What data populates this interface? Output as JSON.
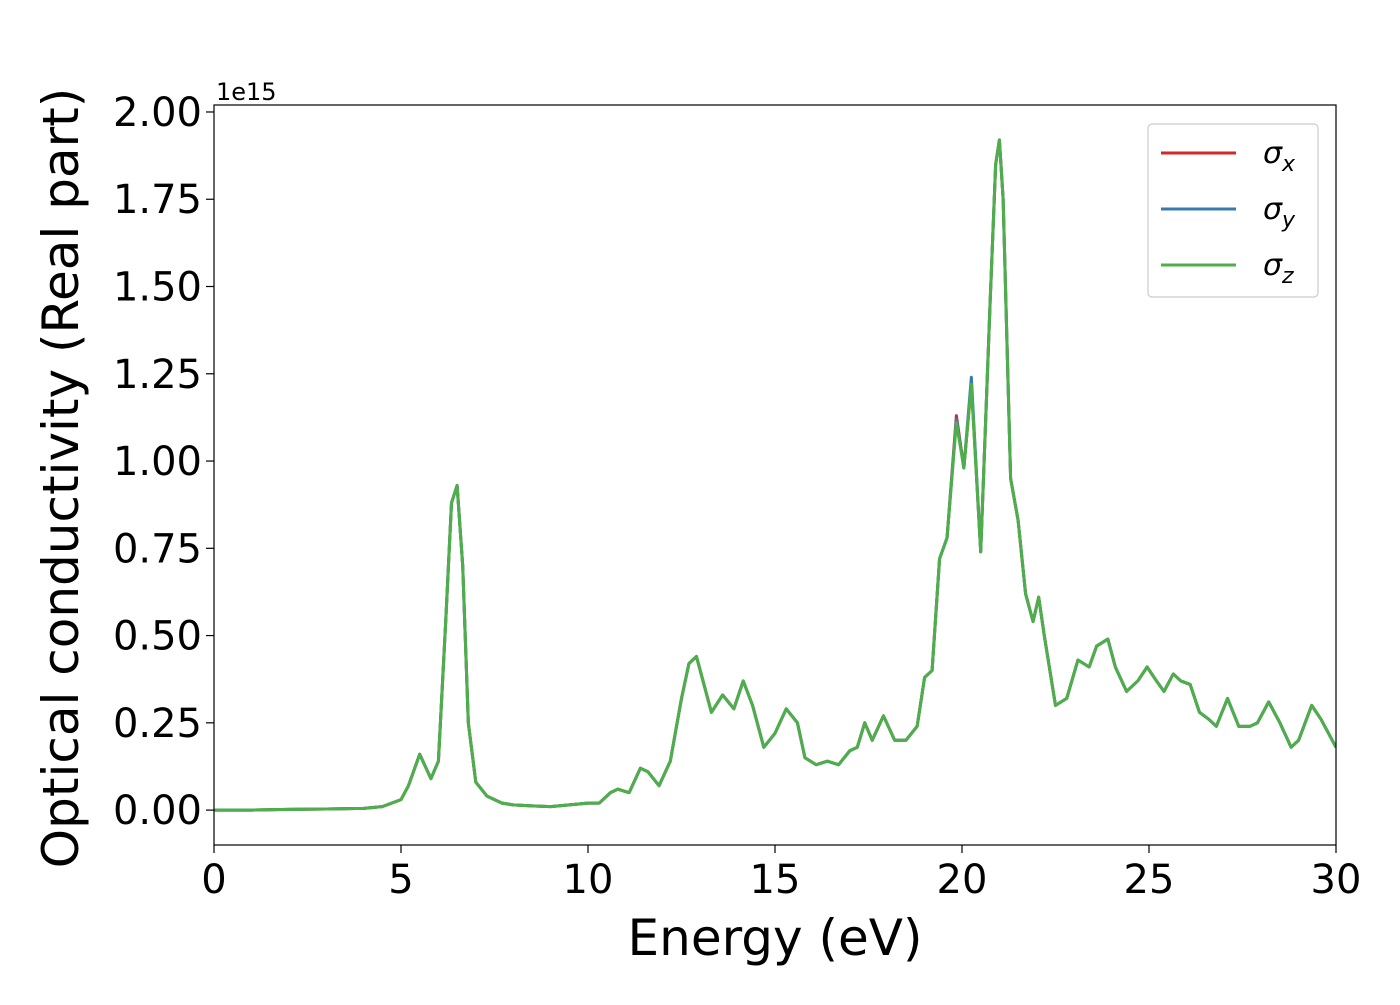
{
  "chart_data": {
    "type": "line",
    "title": "",
    "xlabel": "Energy (eV)",
    "ylabel": "Optical conductivity (Real part)",
    "y_offset_label": "1e15",
    "xlim": [
      0,
      30
    ],
    "ylim": [
      -0.1,
      2.02
    ],
    "y_scale_factor": 1000000000000000.0,
    "xticks": [
      0,
      5,
      10,
      15,
      20,
      25,
      30
    ],
    "xtick_labels": [
      "0",
      "5",
      "10",
      "15",
      "20",
      "25",
      "30"
    ],
    "yticks": [
      0.0,
      0.25,
      0.5,
      0.75,
      1.0,
      1.25,
      1.5,
      1.75,
      2.0
    ],
    "ytick_labels": [
      "0.00",
      "0.25",
      "0.50",
      "0.75",
      "1.00",
      "1.25",
      "1.50",
      "1.75",
      "2.00"
    ],
    "grid": false,
    "legend_position": "top-right",
    "x": [
      0,
      1,
      2,
      3,
      4,
      4.5,
      5,
      5.2,
      5.5,
      5.8,
      6.0,
      6.2,
      6.35,
      6.5,
      6.65,
      6.8,
      7.0,
      7.3,
      7.7,
      8.0,
      8.5,
      9.0,
      9.5,
      10.0,
      10.3,
      10.6,
      10.8,
      11.1,
      11.4,
      11.6,
      11.9,
      12.2,
      12.5,
      12.7,
      12.9,
      13.1,
      13.3,
      13.6,
      13.9,
      14.15,
      14.4,
      14.7,
      15.0,
      15.3,
      15.6,
      15.8,
      16.1,
      16.4,
      16.7,
      17.0,
      17.2,
      17.4,
      17.6,
      17.9,
      18.2,
      18.5,
      18.8,
      19.0,
      19.2,
      19.4,
      19.6,
      19.85,
      20.05,
      20.25,
      20.5,
      20.75,
      20.9,
      21.0,
      21.1,
      21.3,
      21.5,
      21.7,
      21.9,
      22.05,
      22.2,
      22.5,
      22.8,
      23.1,
      23.4,
      23.6,
      23.9,
      24.1,
      24.4,
      24.7,
      24.95,
      25.2,
      25.4,
      25.65,
      25.85,
      26.1,
      26.35,
      26.6,
      26.8,
      27.1,
      27.4,
      27.7,
      27.9,
      28.2,
      28.5,
      28.8,
      29.0,
      29.35,
      29.6,
      29.8,
      30.0
    ],
    "series": [
      {
        "name": "σx",
        "color": "#d62728",
        "values": [
          0,
          0,
          0.002,
          0.003,
          0.005,
          0.01,
          0.03,
          0.07,
          0.16,
          0.09,
          0.14,
          0.55,
          0.88,
          0.93,
          0.7,
          0.25,
          0.08,
          0.04,
          0.02,
          0.015,
          0.012,
          0.01,
          0.015,
          0.02,
          0.02,
          0.05,
          0.06,
          0.05,
          0.12,
          0.11,
          0.07,
          0.14,
          0.32,
          0.42,
          0.44,
          0.36,
          0.28,
          0.33,
          0.29,
          0.37,
          0.3,
          0.18,
          0.22,
          0.29,
          0.25,
          0.15,
          0.13,
          0.14,
          0.13,
          0.17,
          0.18,
          0.25,
          0.2,
          0.27,
          0.2,
          0.2,
          0.24,
          0.38,
          0.4,
          0.72,
          0.78,
          1.13,
          0.98,
          1.22,
          0.74,
          1.45,
          1.85,
          1.92,
          1.75,
          0.95,
          0.83,
          0.62,
          0.54,
          0.61,
          0.5,
          0.3,
          0.32,
          0.43,
          0.41,
          0.47,
          0.49,
          0.41,
          0.34,
          0.37,
          0.41,
          0.37,
          0.34,
          0.39,
          0.37,
          0.36,
          0.28,
          0.26,
          0.24,
          0.32,
          0.24,
          0.24,
          0.25,
          0.31,
          0.25,
          0.18,
          0.2,
          0.3,
          0.26,
          0.22,
          0.18
        ]
      },
      {
        "name": "σy",
        "color": "#3a78b0",
        "values": [
          0,
          0,
          0.002,
          0.003,
          0.005,
          0.01,
          0.03,
          0.07,
          0.16,
          0.09,
          0.14,
          0.55,
          0.88,
          0.93,
          0.7,
          0.25,
          0.08,
          0.04,
          0.02,
          0.015,
          0.012,
          0.01,
          0.015,
          0.02,
          0.02,
          0.05,
          0.06,
          0.05,
          0.12,
          0.11,
          0.07,
          0.14,
          0.32,
          0.42,
          0.44,
          0.36,
          0.28,
          0.33,
          0.29,
          0.37,
          0.3,
          0.18,
          0.22,
          0.29,
          0.25,
          0.15,
          0.13,
          0.14,
          0.13,
          0.17,
          0.18,
          0.25,
          0.2,
          0.27,
          0.2,
          0.2,
          0.24,
          0.38,
          0.4,
          0.72,
          0.78,
          1.12,
          0.98,
          1.24,
          0.74,
          1.45,
          1.85,
          1.92,
          1.75,
          0.95,
          0.83,
          0.62,
          0.54,
          0.61,
          0.5,
          0.3,
          0.32,
          0.43,
          0.41,
          0.47,
          0.49,
          0.41,
          0.34,
          0.37,
          0.41,
          0.37,
          0.34,
          0.39,
          0.37,
          0.36,
          0.28,
          0.26,
          0.24,
          0.32,
          0.24,
          0.24,
          0.25,
          0.31,
          0.25,
          0.18,
          0.2,
          0.3,
          0.26,
          0.22,
          0.18
        ]
      },
      {
        "name": "σz",
        "color": "#4daf4a",
        "values": [
          0,
          0,
          0.002,
          0.003,
          0.005,
          0.01,
          0.03,
          0.07,
          0.16,
          0.09,
          0.14,
          0.55,
          0.88,
          0.93,
          0.7,
          0.25,
          0.08,
          0.04,
          0.02,
          0.015,
          0.012,
          0.01,
          0.015,
          0.02,
          0.02,
          0.05,
          0.06,
          0.05,
          0.12,
          0.11,
          0.07,
          0.14,
          0.32,
          0.42,
          0.44,
          0.36,
          0.28,
          0.33,
          0.29,
          0.37,
          0.3,
          0.18,
          0.22,
          0.29,
          0.25,
          0.15,
          0.13,
          0.14,
          0.13,
          0.17,
          0.18,
          0.25,
          0.2,
          0.27,
          0.2,
          0.2,
          0.24,
          0.38,
          0.4,
          0.72,
          0.78,
          1.11,
          0.98,
          1.22,
          0.74,
          1.45,
          1.85,
          1.92,
          1.75,
          0.95,
          0.83,
          0.62,
          0.54,
          0.61,
          0.5,
          0.3,
          0.32,
          0.43,
          0.41,
          0.47,
          0.49,
          0.41,
          0.34,
          0.37,
          0.41,
          0.37,
          0.34,
          0.39,
          0.37,
          0.36,
          0.28,
          0.26,
          0.24,
          0.32,
          0.24,
          0.24,
          0.25,
          0.31,
          0.25,
          0.18,
          0.2,
          0.3,
          0.26,
          0.22,
          0.18
        ]
      }
    ]
  },
  "legend": {
    "items": [
      {
        "symbol": "σ",
        "sub": "x",
        "color": "#d62728"
      },
      {
        "symbol": "σ",
        "sub": "y",
        "color": "#3a78b0"
      },
      {
        "symbol": "σ",
        "sub": "z",
        "color": "#4daf4a"
      }
    ]
  }
}
